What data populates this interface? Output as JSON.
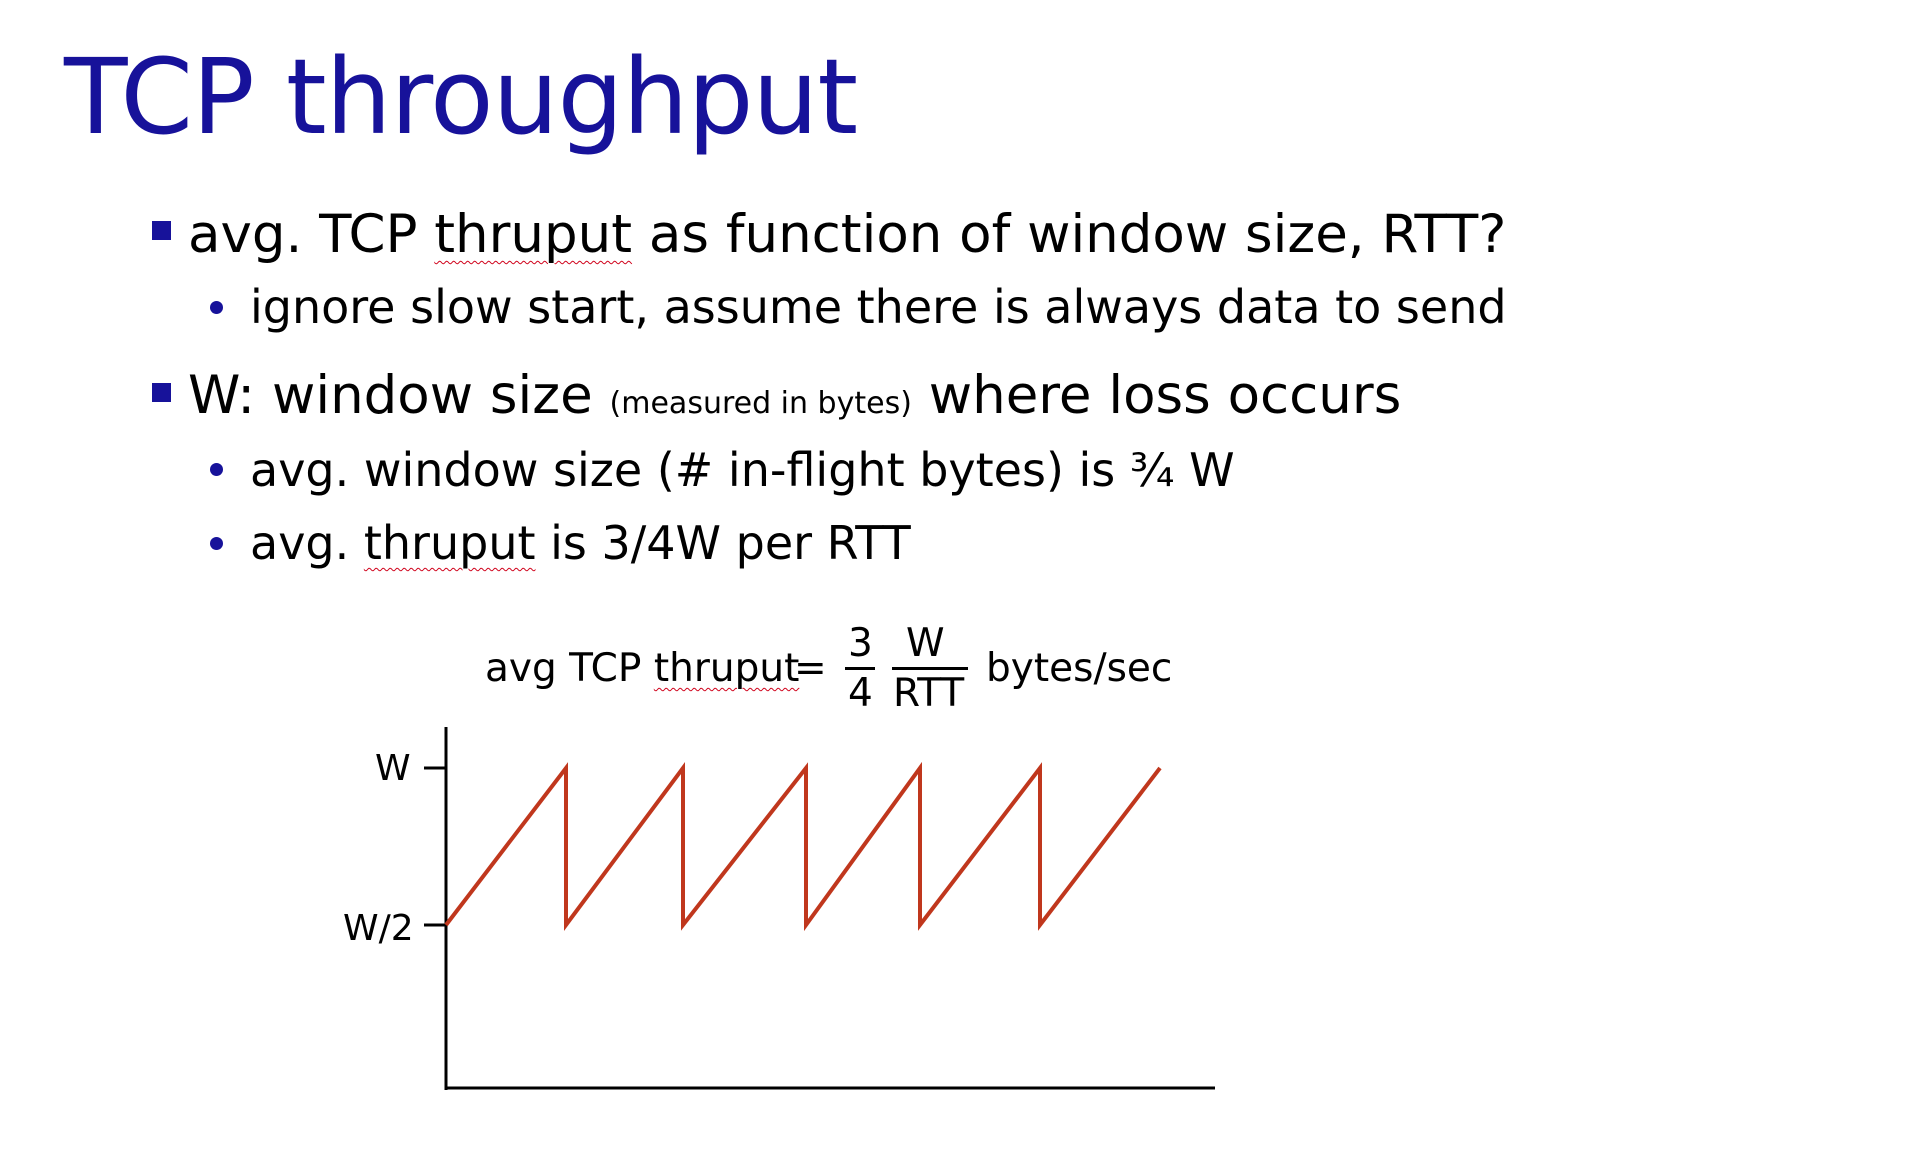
{
  "slide": {
    "title": "TCP throughput",
    "bullets": [
      {
        "text_before": "avg. TCP ",
        "text_spell": "thruput",
        "text_after": " as function of window size, RTT?",
        "sub": [
          {
            "text": "ignore slow start, assume there is always data to send"
          }
        ]
      },
      {
        "text_before": "W: window size ",
        "text_small": "(measured in bytes)",
        "text_after": " where loss occurs",
        "sub": [
          {
            "text": "avg. window size (# in-flight bytes) is ¾ W"
          },
          {
            "text_before": "avg. ",
            "text_spell": "thruput",
            "text_after": " is 3/4W per RTT"
          }
        ]
      }
    ]
  },
  "formula": {
    "lhs_before": "avg TCP ",
    "lhs_spell": "thruput",
    "equals": "=",
    "num1": "3",
    "den1": "4",
    "num2": "W",
    "den2": "RTT",
    "unit": "bytes/sec"
  },
  "diagram": {
    "y_tick_labels": [
      "W",
      "W/2"
    ],
    "sawtooth_peaks": 5,
    "line_color": "#c0371d",
    "axis_color": "#000000",
    "accent": "#17129a"
  }
}
